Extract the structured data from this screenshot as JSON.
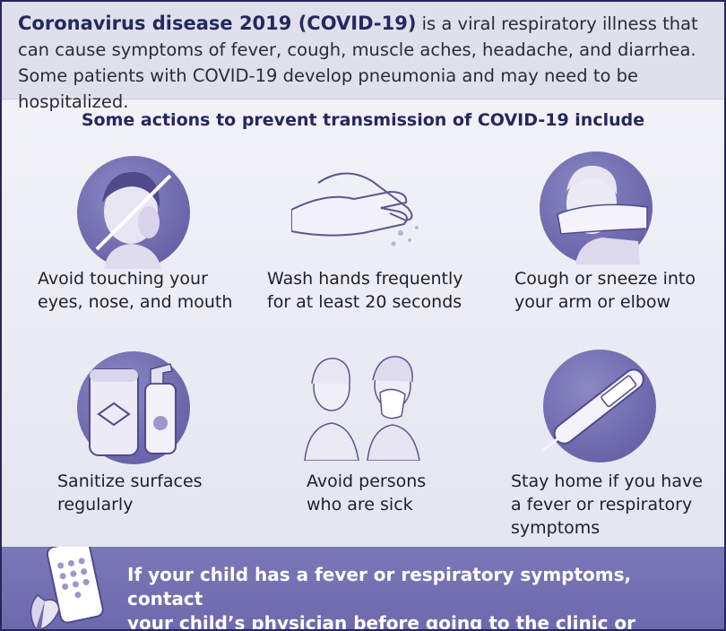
{
  "header": {
    "lead": "Coronavirus disease 2019 (COVID-19)",
    "text": " is a viral respiratory illness that can cause symptoms of fever, cough, muscle aches, headache, and diarrhea. Some patients with COVID-19 develop pneumonia and may need to be hospitalized."
  },
  "subtitle": "Some actions to prevent transmission of COVID-19 include",
  "actions": [
    {
      "caption": "Avoid touching your\neyes, nose, and mouth",
      "icon": "no-face-touching-icon"
    },
    {
      "caption": "Wash hands frequently\nfor at least 20 seconds",
      "icon": "hand-washing-icon"
    },
    {
      "caption": "Cough or sneeze into\nyour arm or elbow",
      "icon": "cough-into-elbow-icon"
    },
    {
      "caption": "Sanitize surfaces\nregularly",
      "icon": "sanitizer-icon"
    },
    {
      "caption": "Avoid persons\nwho are sick",
      "icon": "sick-person-icon"
    },
    {
      "caption": "Stay home if you have\na fever or respiratory\nsymptoms",
      "icon": "thermometer-icon"
    }
  ],
  "footer": {
    "text": "If your child has a fever or respiratory symptoms, contact\nyour child’s physician before going to the clinic or hospital.",
    "icon": "phone-icon"
  },
  "colors": {
    "navy": "#25275f",
    "icon_purple": "#6a65aa",
    "footer_purple": "#7b78b8",
    "header_bg": "#e0e0ec"
  }
}
